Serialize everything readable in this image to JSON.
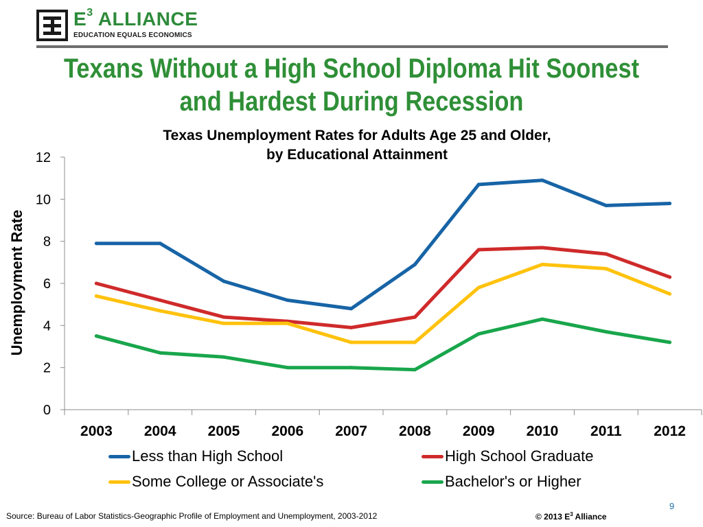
{
  "header": {
    "logo_name": "E",
    "logo_sup": "3",
    "logo_name_rest": " ALLIANCE",
    "logo_tagline": "EDUCATION EQUALS ECONOMICS"
  },
  "slide": {
    "title_line1": "Texans Without a High School Diploma Hit Soonest",
    "title_line2": "and Hardest During Recession",
    "page_number": "9",
    "source": "Source: Bureau of Labor Statistics-Geographic Profile of Employment and Unemployment, 2003-2012",
    "copyright_prefix": "© 2013 E",
    "copyright_sup": "3",
    "copyright_suffix": " Alliance"
  },
  "colors": {
    "title": "#2f8f37",
    "less_than_hs": "#1764a6",
    "hs_graduate": "#cf2a2a",
    "some_college": "#ffc20e",
    "bachelors": "#19a64c"
  },
  "chart_data": {
    "type": "line",
    "title_line1": "Texas Unemployment Rates for Adults Age 25 and Older,",
    "title_line2": "by Educational Attainment",
    "xlabel": "",
    "ylabel": "Unemployment Rate",
    "categories": [
      "2003",
      "2004",
      "2005",
      "2006",
      "2007",
      "2008",
      "2009",
      "2010",
      "2011",
      "2012"
    ],
    "ylim": [
      0,
      12
    ],
    "yticks": [
      "0",
      "2",
      "4",
      "6",
      "8",
      "10",
      "12"
    ],
    "grid": false,
    "legend_position": "bottom",
    "series": [
      {
        "name": "Less than High School",
        "color": "#1764a6",
        "values": [
          7.9,
          7.9,
          6.1,
          5.2,
          4.8,
          6.9,
          10.7,
          10.9,
          9.7,
          9.8
        ]
      },
      {
        "name": "High School Graduate",
        "color": "#cf2a2a",
        "values": [
          6.0,
          5.2,
          4.4,
          4.2,
          3.9,
          4.4,
          7.6,
          7.7,
          7.4,
          6.3
        ]
      },
      {
        "name": "Some College or Associate's",
        "color": "#ffc20e",
        "values": [
          5.4,
          4.7,
          4.1,
          4.1,
          3.2,
          3.2,
          5.8,
          6.9,
          6.7,
          5.5
        ]
      },
      {
        "name": "Bachelor's or Higher",
        "color": "#19a64c",
        "values": [
          3.5,
          2.7,
          2.5,
          2.0,
          2.0,
          1.9,
          3.6,
          4.3,
          3.7,
          3.2
        ]
      }
    ]
  }
}
